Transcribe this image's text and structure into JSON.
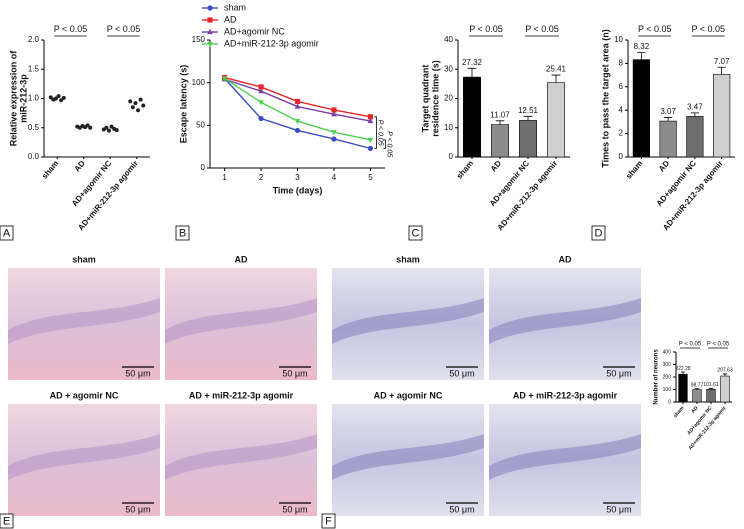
{
  "chart_data": [
    {
      "type": "scatter",
      "categories": [
        "sham",
        "AD",
        "AD+agomir NC",
        "AD+miR-212-3p agomir"
      ],
      "values": [
        [
          1.02,
          0.98,
          1.0,
          1.04,
          0.97,
          1.01
        ],
        [
          0.52,
          0.5,
          0.53,
          0.51,
          0.54,
          0.5
        ],
        [
          0.47,
          0.5,
          0.45,
          0.52,
          0.48,
          0.46
        ],
        [
          0.95,
          0.85,
          0.92,
          0.8,
          0.98,
          0.88
        ]
      ],
      "color": "#222222",
      "y_label": [
        "Relative expression of",
        "miR-212-3p"
      ],
      "ylim": [
        0,
        2
      ],
      "yticks": [
        {
          "value": 0,
          "label": "0.0"
        },
        0.5,
        {
          "value": 1,
          "label": "1.0"
        },
        1.5,
        {
          "value": 2,
          "label": "2.0"
        }
      ],
      "annotations": [
        "P < 0.05",
        "P < 0.05"
      ]
    },
    {
      "type": "line",
      "x": [
        1,
        2,
        3,
        4,
        5
      ],
      "x_label": "Time (days)",
      "y_label": [
        "Escape latency (s)"
      ],
      "series": [
        {
          "name": "sham",
          "color": "#3b4cc0",
          "marker": "circle",
          "values": [
            105,
            58,
            44,
            34,
            23
          ]
        },
        {
          "name": "AD",
          "color": "#e8282b",
          "marker": "square",
          "values": [
            106,
            95,
            78,
            68,
            60
          ]
        },
        {
          "name": "AD+agomir NC",
          "color": "#7a3fa8",
          "marker": "triangle-up",
          "values": [
            104,
            90,
            72,
            63,
            55
          ]
        },
        {
          "name": "AD+miR-212-3p agomir",
          "color": "#4fd14f",
          "marker": "triangle-down",
          "values": [
            105,
            77,
            55,
            42,
            33
          ]
        }
      ],
      "xlim": [
        0.6,
        5.4
      ],
      "xticks": [
        1,
        2,
        3,
        4,
        5
      ],
      "ylim": [
        0,
        150
      ],
      "yticks": [
        0,
        50,
        100,
        150
      ],
      "annotations": [
        "P < 0.05",
        "P < 0.05"
      ]
    },
    {
      "type": "bar",
      "categories": [
        "sham",
        "AD",
        "AD+agomir NC",
        "AD+miR-212-3p agomir"
      ],
      "values": [
        27.32,
        11.07,
        12.51,
        25.41
      ],
      "errors": [
        3,
        1.3,
        1.4,
        2.6
      ],
      "colors": [
        "#000000",
        "#8c8c8c",
        "#6e6e6e",
        "#cfcfcf"
      ],
      "y_label": [
        "Target quadrant",
        "residence time (s)"
      ],
      "ylim": [
        0,
        40
      ],
      "yticks": [
        0,
        10,
        20,
        30,
        40
      ],
      "annotations": [
        "P < 0.05",
        "P < 0.05"
      ]
    },
    {
      "type": "bar",
      "categories": [
        "sham",
        "AD",
        "AD+agomir NC",
        "AD+miR-212-3p agomir"
      ],
      "values": [
        8.32,
        3.07,
        3.47,
        7.07
      ],
      "errors": [
        0.6,
        0.3,
        0.3,
        0.6
      ],
      "colors": [
        "#000000",
        "#8c8c8c",
        "#6e6e6e",
        "#cfcfcf"
      ],
      "y_label": [
        "Times to pass the target area (n)"
      ],
      "ylim": [
        0,
        10
      ],
      "yticks": [
        0,
        2,
        4,
        6,
        8,
        10
      ],
      "annotations": [
        "P < 0.05",
        "P < 0.05"
      ]
    },
    {
      "type": "bar",
      "categories": [
        "sham",
        "AD",
        "AD+agomir NC",
        "AD+miR-212-3p agomir"
      ],
      "values": [
        222.28,
        98.77,
        101.61,
        207.63
      ],
      "errors": [
        18,
        8,
        8,
        17
      ],
      "colors": [
        "#000000",
        "#8c8c8c",
        "#6e6e6e",
        "#cfcfcf"
      ],
      "y_label": [
        "Number of neurons"
      ],
      "ylim": [
        0,
        400
      ],
      "yticks": [
        0,
        100,
        200,
        300,
        400
      ],
      "annotations": [
        "P < 0.05",
        "P < 0.05"
      ]
    }
  ],
  "panel_labels": [
    "A",
    "B",
    "C",
    "D",
    "E",
    "F"
  ],
  "micrographs": {
    "E": [
      {
        "label": "sham",
        "scale": "50 μm"
      },
      {
        "label": "AD",
        "scale": "50 μm"
      },
      {
        "label": "AD + agomir NC",
        "scale": "50 μm"
      },
      {
        "label": "AD + miR-212-3p agomir",
        "scale": "50 μm"
      }
    ],
    "F": [
      {
        "label": "sham",
        "scale": "50 μm"
      },
      {
        "label": "AD",
        "scale": "50 μm"
      },
      {
        "label": "AD + agomir NC",
        "scale": "50 μm"
      },
      {
        "label": "AD + miR-212-3p agomir",
        "scale": "50 μm"
      }
    ]
  }
}
